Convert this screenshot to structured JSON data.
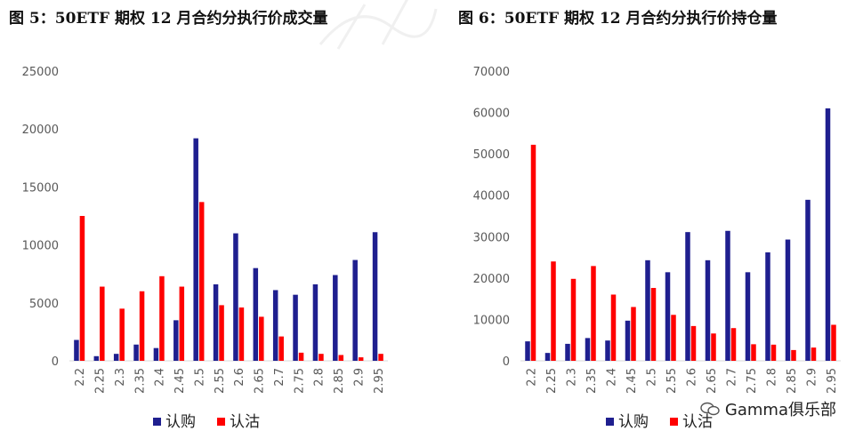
{
  "watermark": {
    "text": "Gamma俱乐部",
    "icon": "wechat-icon"
  },
  "colors": {
    "call": "#1F1F8F",
    "put": "#FF0000",
    "axis": "#D9D9D9"
  },
  "chart_data": [
    {
      "type": "bar",
      "title": "图 5：50ETF 期权 12 月合约分执行价成交量",
      "categories": [
        "2.2",
        "2.25",
        "2.3",
        "2.35",
        "2.4",
        "2.45",
        "2.5",
        "2.55",
        "2.6",
        "2.65",
        "2.7",
        "2.75",
        "2.8",
        "2.85",
        "2.9",
        "2.95"
      ],
      "series": [
        {
          "name": "认购",
          "values": [
            1800,
            400,
            600,
            1400,
            1100,
            3500,
            19200,
            6600,
            11000,
            8000,
            6100,
            5700,
            6600,
            7400,
            8700,
            11100
          ]
        },
        {
          "name": "认沽",
          "values": [
            12500,
            6400,
            4500,
            6000,
            7300,
            6400,
            13700,
            4800,
            4600,
            3800,
            2100,
            700,
            600,
            500,
            300,
            600
          ]
        }
      ],
      "ylim": [
        0,
        25000
      ],
      "yticks": [
        "0",
        "5000",
        "10000",
        "15000",
        "20000",
        "25000"
      ],
      "legend_position": "bottom",
      "grid": false
    },
    {
      "type": "bar",
      "title": "图 6：50ETF 期权 12 月合约分执行价持仓量",
      "categories": [
        "2.2",
        "2.25",
        "2.3",
        "2.35",
        "2.4",
        "2.45",
        "2.5",
        "2.55",
        "2.6",
        "2.65",
        "2.7",
        "2.75",
        "2.8",
        "2.85",
        "2.9",
        "2.95"
      ],
      "series": [
        {
          "name": "认购",
          "values": [
            4700,
            1900,
            4100,
            5500,
            4900,
            9700,
            24300,
            21400,
            31100,
            24300,
            31400,
            21400,
            26200,
            29300,
            38900,
            61000
          ]
        },
        {
          "name": "认沽",
          "values": [
            52200,
            24000,
            19800,
            22900,
            16000,
            13000,
            17600,
            11100,
            8400,
            6600,
            7900,
            4000,
            3900,
            2600,
            3200,
            8700
          ]
        }
      ],
      "ylim": [
        0,
        70000
      ],
      "yticks": [
        "0",
        "10000",
        "20000",
        "30000",
        "40000",
        "50000",
        "60000",
        "70000"
      ],
      "legend_position": "bottom",
      "grid": false
    }
  ]
}
